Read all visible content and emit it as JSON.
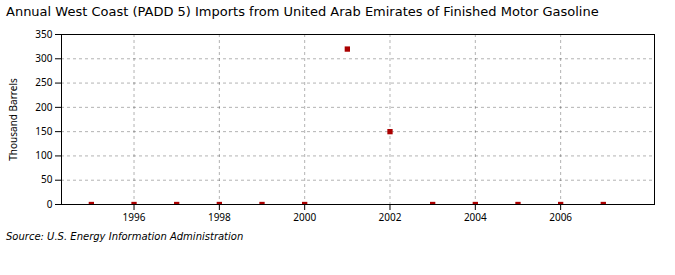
{
  "chart_data": {
    "type": "scatter",
    "title": "Annual West Coast (PADD 5) Imports from United Arab Emirates of Finished Motor Gasoline",
    "ylabel": "Thousand Barrels",
    "source": "Source: U.S. Energy Information Administration",
    "x": [
      1995,
      1996,
      1997,
      1998,
      1999,
      2000,
      2001,
      2002,
      2003,
      2004,
      2005,
      2006,
      2007
    ],
    "values": [
      0,
      0,
      0,
      0,
      0,
      0,
      320,
      150,
      0,
      0,
      0,
      0,
      0
    ],
    "color": "#aa0000",
    "marker": "square",
    "xlim": [
      1994.3,
      2008.2
    ],
    "xticks": [
      1996,
      1998,
      2000,
      2002,
      2004,
      2006
    ],
    "ylim": [
      0,
      350
    ],
    "yticks": [
      0,
      50,
      100,
      150,
      200,
      250,
      300,
      350
    ],
    "grid": true
  }
}
